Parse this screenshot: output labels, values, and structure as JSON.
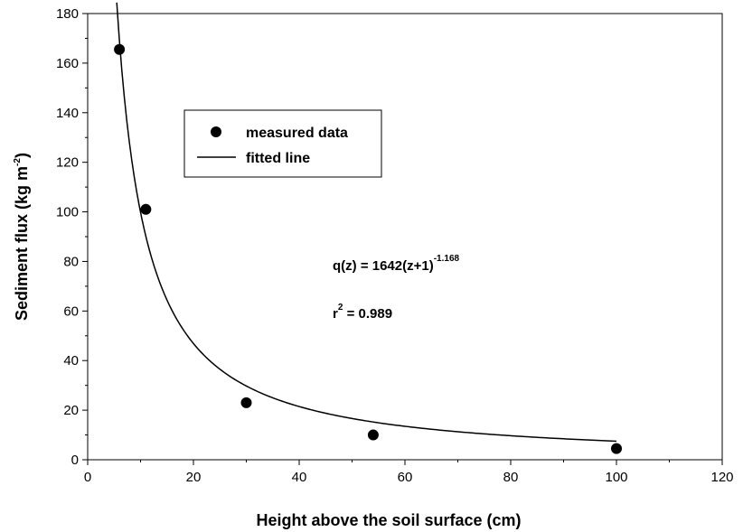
{
  "chart_data": {
    "type": "scatter",
    "xlabel": "Height above the soil surface (cm)",
    "ylabel_main": "Sediment flux (kg m",
    "ylabel_sup": "-2",
    "ylabel_end": ")",
    "xlim": [
      0,
      120
    ],
    "ylim": [
      0,
      180
    ],
    "xticks": [
      0,
      20,
      40,
      60,
      80,
      100,
      120
    ],
    "yticks": [
      0,
      20,
      40,
      60,
      80,
      100,
      120,
      140,
      160,
      180
    ],
    "grid": false,
    "legend_position": "upper-left",
    "series": [
      {
        "name": "measured data",
        "type": "scatter",
        "marker": "filled-circle",
        "color": "#000000",
        "x": [
          6,
          11,
          30,
          54,
          100
        ],
        "y": [
          165.5,
          101,
          23,
          10,
          4.5
        ]
      },
      {
        "name": "fitted line",
        "type": "line",
        "color": "#000000",
        "formula": {
          "a": 1642,
          "b": -1.168,
          "x_from": 5.5,
          "x_to": 100
        }
      }
    ],
    "annotations": {
      "equation_main": "q(z) = 1642(z+1)",
      "equation_sup": "-1.168",
      "r2_prefix": "r",
      "r2_sup": "2",
      "r2_value": " = 0.989"
    }
  }
}
